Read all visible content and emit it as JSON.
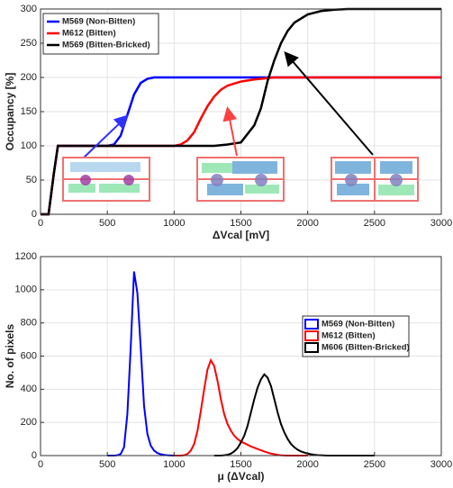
{
  "chart_data": [
    {
      "type": "line",
      "xlabel": "ΔVcal [mV]",
      "ylabel": "Occupancy [%]",
      "grid": true,
      "legend_loc": "upper left",
      "xlim": [
        0,
        3000
      ],
      "ylim": [
        0,
        300
      ],
      "xticks": [
        0,
        500,
        1000,
        1500,
        2000,
        2500,
        3000
      ],
      "yticks": [
        0,
        50,
        100,
        150,
        200,
        250,
        300
      ],
      "x": [
        0,
        60,
        100,
        130,
        500,
        550,
        600,
        650,
        700,
        750,
        800,
        850,
        900,
        1000,
        1050,
        1100,
        1150,
        1200,
        1250,
        1300,
        1350,
        1400,
        1500,
        1600,
        1650,
        1700,
        1750,
        1800,
        1850,
        1900,
        2000,
        2100,
        2200,
        2300,
        3000
      ],
      "series": [
        {
          "name": "M569 (Non-Bitten)",
          "color": "#0000ff",
          "values": [
            0,
            0,
            60,
            100,
            100,
            102,
            115,
            145,
            175,
            192,
            198,
            200,
            200,
            200,
            200,
            200,
            200,
            200,
            200,
            200,
            200,
            200,
            200,
            200,
            200,
            200,
            200,
            200,
            200,
            200,
            200,
            200,
            200,
            200,
            200
          ]
        },
        {
          "name": "M612 (Bitten)",
          "color": "#ff0000",
          "values": [
            0,
            0,
            60,
            100,
            100,
            100,
            100,
            100,
            100,
            100,
            100,
            100,
            100,
            100,
            102,
            108,
            120,
            140,
            158,
            172,
            182,
            188,
            194,
            197,
            198,
            199,
            200,
            200,
            200,
            200,
            200,
            200,
            200,
            200,
            200
          ]
        },
        {
          "name": "M569 (Bitten-Bricked)",
          "color": "#000000",
          "values": [
            0,
            0,
            60,
            100,
            100,
            100,
            100,
            100,
            100,
            100,
            100,
            100,
            100,
            100,
            100,
            100,
            100,
            100,
            100,
            100,
            101,
            102,
            105,
            130,
            155,
            195,
            225,
            250,
            268,
            280,
            292,
            297,
            299,
            300,
            300
          ]
        }
      ]
    },
    {
      "type": "line",
      "xlabel": "μ (ΔVcal)",
      "ylabel": "No. of pixels",
      "grid": true,
      "legend_loc": "center right",
      "xlim": [
        0,
        3000
      ],
      "ylim": [
        0,
        1200
      ],
      "xticks": [
        0,
        500,
        1000,
        1500,
        2000,
        2500,
        3000
      ],
      "yticks": [
        0,
        200,
        400,
        600,
        800,
        1000,
        1200
      ],
      "series": [
        {
          "name": "M569 (Non-Bitten)",
          "color": "#0000ff",
          "x": [
            500,
            525,
            550,
            575,
            600,
            625,
            650,
            675,
            700,
            725,
            750,
            775,
            800,
            825,
            850,
            875,
            900,
            925,
            950,
            975,
            1000
          ],
          "values": [
            0,
            0,
            0,
            2,
            10,
            50,
            250,
            650,
            1110,
            980,
            650,
            300,
            130,
            60,
            30,
            15,
            8,
            4,
            2,
            1,
            0
          ]
        },
        {
          "name": "M612 (Bitten)",
          "color": "#ff0000",
          "x": [
            1000,
            1025,
            1050,
            1075,
            1100,
            1125,
            1150,
            1175,
            1200,
            1225,
            1250,
            1275,
            1300,
            1325,
            1350,
            1375,
            1400,
            1425,
            1450,
            1475,
            1500,
            1525,
            1550,
            1575,
            1600,
            1625,
            1650,
            1675,
            1700,
            1725,
            1750,
            1775,
            1800,
            1825,
            1850,
            1875,
            1900,
            1925,
            1950,
            1975,
            2000
          ],
          "values": [
            0,
            0,
            0,
            2,
            10,
            30,
            70,
            150,
            270,
            400,
            520,
            575,
            540,
            450,
            340,
            250,
            190,
            150,
            120,
            100,
            85,
            75,
            65,
            55,
            48,
            40,
            32,
            25,
            18,
            12,
            8,
            4,
            2,
            1,
            0,
            0,
            0,
            0,
            0,
            0,
            0
          ]
        },
        {
          "name": "M606 (Bitten-Bricked)",
          "color": "#000000",
          "x": [
            1300,
            1325,
            1350,
            1375,
            1400,
            1425,
            1450,
            1475,
            1500,
            1525,
            1550,
            1575,
            1600,
            1625,
            1650,
            1675,
            1700,
            1725,
            1750,
            1775,
            1800,
            1825,
            1850,
            1875,
            1900,
            1925,
            1950,
            1975,
            2000,
            2025,
            2050,
            2075,
            2100,
            2125,
            2150,
            2175,
            2200,
            2225,
            2250,
            2275,
            2300,
            2325,
            2350,
            2375,
            2400,
            2425,
            2450,
            2475,
            2500
          ],
          "values": [
            0,
            0,
            0,
            2,
            5,
            12,
            25,
            45,
            80,
            120,
            180,
            260,
            340,
            410,
            460,
            490,
            470,
            420,
            340,
            260,
            190,
            140,
            100,
            70,
            50,
            35,
            25,
            18,
            12,
            8,
            5,
            3,
            2,
            1,
            0,
            0,
            0,
            0,
            0,
            0,
            0,
            0,
            0,
            0,
            0,
            0,
            0,
            0,
            0
          ]
        }
      ]
    }
  ]
}
